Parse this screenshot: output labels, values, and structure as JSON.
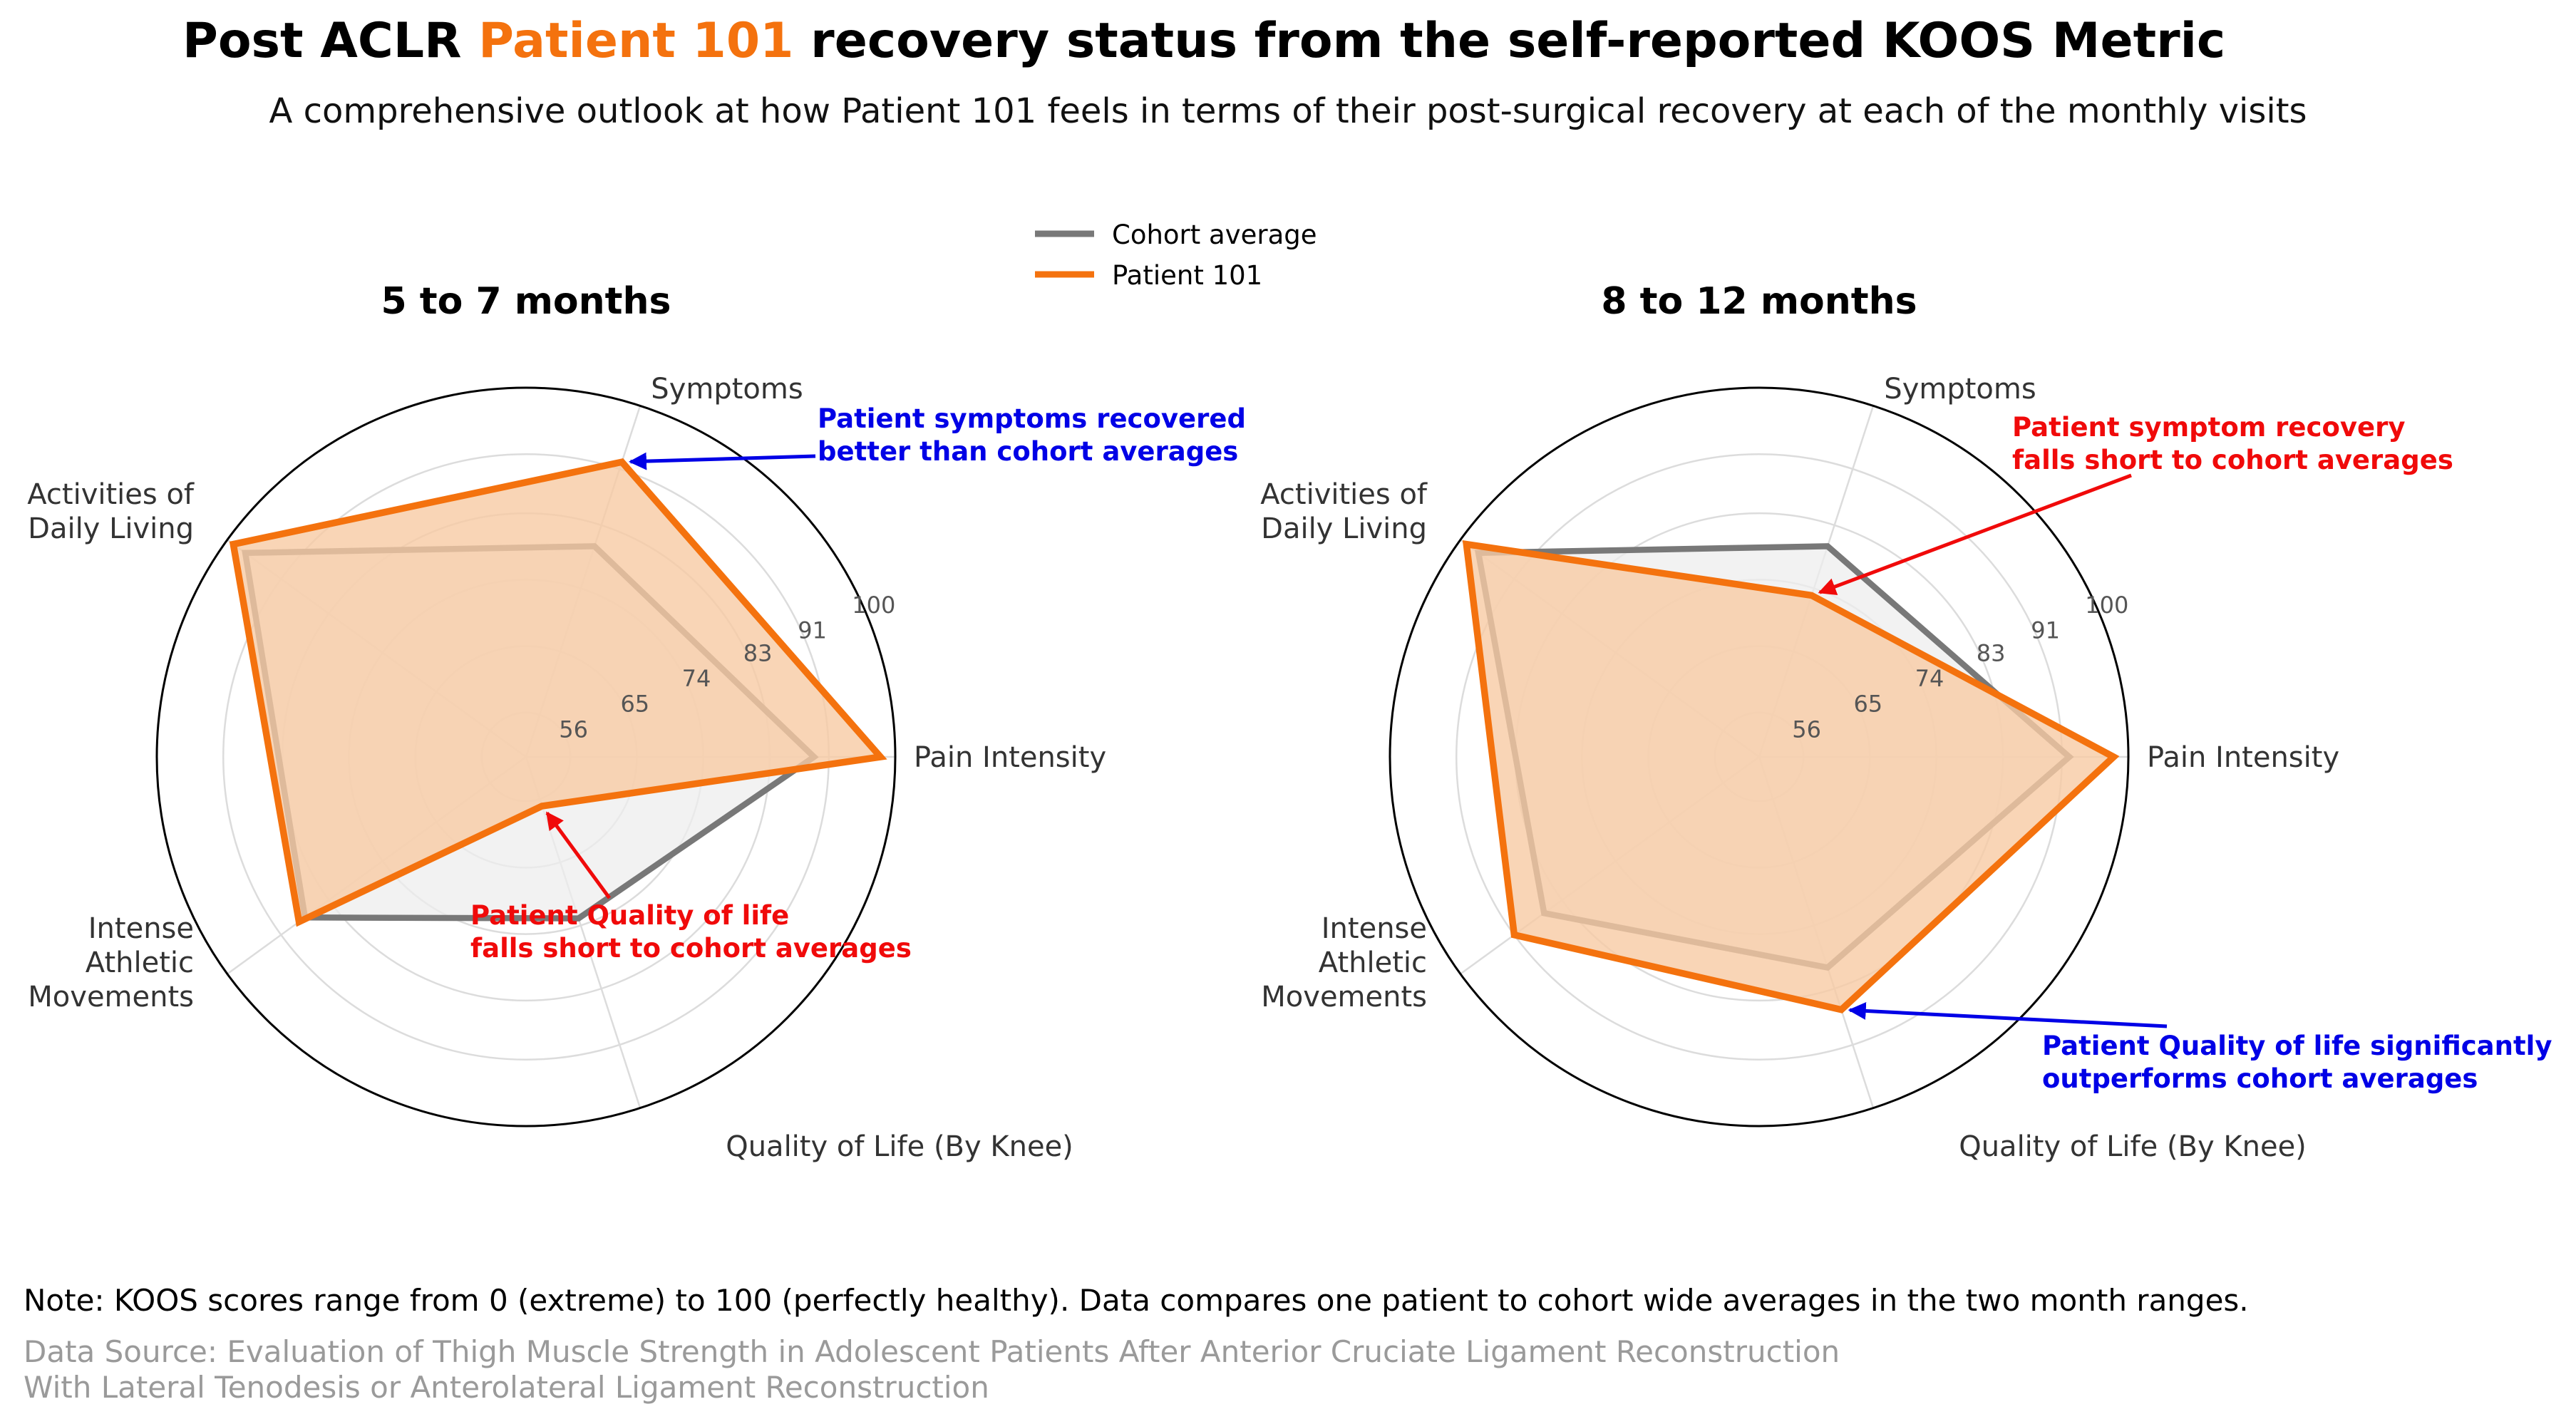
{
  "header": {
    "title_prefix": "Post ACLR ",
    "title_highlight": "Patient 101",
    "title_suffix": " recovery status from the self-reported KOOS Metric",
    "subtitle": "A comprehensive outlook at how Patient 101 feels in terms of their post-surgical recovery at each of the monthly visits"
  },
  "colors": {
    "patient": "#f4720e",
    "patient_fill": "#f7caa4",
    "cohort": "#787878",
    "cohort_fill": "#ededed",
    "positive_annotation": "#0000e6",
    "negative_annotation": "#f00a0a"
  },
  "legend": {
    "cohort_label": "Cohort average",
    "patient_label": "Patient 101"
  },
  "chart_data": [
    {
      "type": "radar",
      "title": "5 to 7 months",
      "axes": [
        "Pain Intensity",
        "Symptoms",
        "Activities of\nDaily Living",
        "Intense\nAthletic\nMovements",
        "Quality of Life (By Knee)"
      ],
      "rlim": [
        50,
        100
      ],
      "r_ticks": [
        56,
        65,
        74,
        83,
        91,
        100
      ],
      "series": [
        {
          "name": "Cohort average",
          "values": [
            89,
            80,
            97,
            87,
            73
          ]
        },
        {
          "name": "Patient 101",
          "values": [
            98,
            92,
            99,
            88,
            57
          ]
        }
      ],
      "annotations": [
        {
          "text": "Patient symptoms recovered\nbetter than cohort averages",
          "axis": "Symptoms",
          "series": "Patient 101",
          "tone": "positive"
        },
        {
          "text": "Patient Quality of life\nfalls short to cohort averages",
          "axis": "Quality of Life (By Knee)",
          "series": "Patient 101",
          "tone": "negative"
        }
      ]
    },
    {
      "type": "radar",
      "title": "8 to 12 months",
      "axes": [
        "Pain Intensity",
        "Symptoms",
        "Activities of\nDaily Living",
        "Intense\nAthletic\nMovements",
        "Quality of Life (By Knee)"
      ],
      "rlim": [
        50,
        100
      ],
      "r_ticks": [
        56,
        65,
        74,
        83,
        91,
        100
      ],
      "series": [
        {
          "name": "Cohort average",
          "values": [
            92,
            80,
            97,
            86,
            80
          ]
        },
        {
          "name": "Patient 101",
          "values": [
            98,
            73,
            99,
            91,
            86
          ]
        }
      ],
      "annotations": [
        {
          "text": "Patient symptom recovery\nfalls short to cohort averages",
          "axis": "Symptoms",
          "series": "Patient 101",
          "tone": "negative"
        },
        {
          "text": "Patient Quality of life significantly\noutperforms cohort averages",
          "axis": "Quality of Life (By Knee)",
          "series": "Patient 101",
          "tone": "positive"
        }
      ]
    }
  ],
  "footer": {
    "note": "Note: KOOS scores range from 0 (extreme) to 100 (perfectly healthy). Data compares one patient to cohort wide averages in the two month ranges.",
    "source_line1": "Data Source: Evaluation of Thigh Muscle Strength in Adolescent Patients After Anterior Cruciate Ligament Reconstruction",
    "source_line2": "With Lateral Tenodesis or Anterolateral Ligament Reconstruction"
  }
}
